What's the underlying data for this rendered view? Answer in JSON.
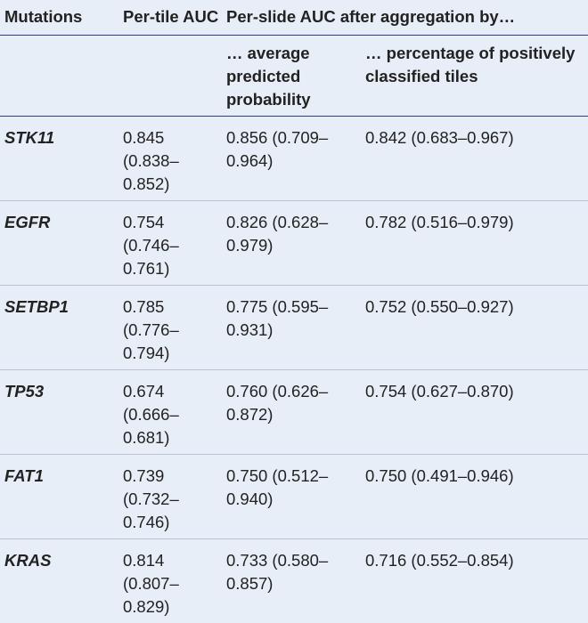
{
  "table": {
    "headers": {
      "mutations": "Mutations",
      "per_tile": "Per-tile AUC",
      "per_slide": "Per-slide AUC after aggregation by…",
      "average": "… average predicted probability",
      "percentage": "… percentage of positively classified tiles"
    },
    "rows": [
      {
        "gene": "STK11",
        "per_tile": "0.845 (0.838–0.852)",
        "average": "0.856 (0.709–0.964)",
        "percentage": "0.842 (0.683–0.967)"
      },
      {
        "gene": "EGFR",
        "per_tile": "0.754 (0.746–0.761)",
        "average": "0.826 (0.628–0.979)",
        "percentage": "0.782 (0.516–0.979)"
      },
      {
        "gene": "SETBP1",
        "per_tile": "0.785 (0.776–0.794)",
        "average": "0.775 (0.595–0.931)",
        "percentage": "0.752 (0.550–0.927)"
      },
      {
        "gene": "TP53",
        "per_tile": "0.674 (0.666–0.681)",
        "average": "0.760 (0.626–0.872)",
        "percentage": "0.754 (0.627–0.870)"
      },
      {
        "gene": "FAT1",
        "per_tile": "0.739 (0.732–0.746)",
        "average": "0.750 (0.512–0.940)",
        "percentage": "0.750 (0.491–0.946)"
      },
      {
        "gene": "KRAS",
        "per_tile": "0.814 (0.807–0.829)",
        "average": "0.733 (0.580–0.857)",
        "percentage": "0.716 (0.552–0.854)"
      }
    ]
  }
}
